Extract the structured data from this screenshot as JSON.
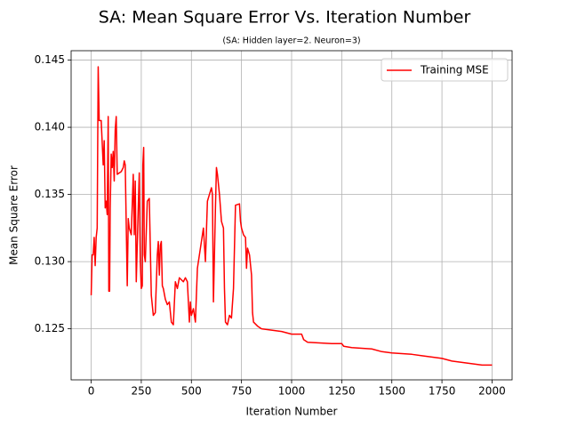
{
  "chart_data": {
    "type": "line",
    "title": "SA: Mean Square Error Vs. Iteration Number",
    "subtitle": "(SA: Hidden layer=2. Neuron=3)",
    "x_label": "Iteration Number",
    "y_label": "Mean Square Error",
    "xlim": [
      -100,
      2100
    ],
    "ylim": [
      0.1212,
      0.1457
    ],
    "xticks": [
      0,
      250,
      500,
      750,
      1000,
      1250,
      1500,
      1750,
      2000
    ],
    "yticks": [
      0.125,
      {
        "value": 0.13,
        "label": "0.130"
      },
      0.135,
      {
        "value": 0.14,
        "label": "0.140"
      },
      0.145
    ],
    "grid": true,
    "legend": "upper right",
    "x": [
      0,
      5,
      10,
      15,
      20,
      25,
      30,
      35,
      40,
      50,
      60,
      65,
      70,
      75,
      80,
      85,
      88,
      92,
      95,
      100,
      105,
      110,
      115,
      120,
      125,
      130,
      150,
      160,
      165,
      170,
      180,
      185,
      190,
      200,
      210,
      215,
      220,
      225,
      235,
      240,
      245,
      250,
      255,
      258,
      262,
      265,
      270,
      280,
      290,
      300,
      310,
      320,
      330,
      335,
      340,
      345,
      350,
      355,
      360,
      370,
      380,
      390,
      400,
      410,
      420,
      430,
      440,
      460,
      470,
      480,
      490,
      495,
      500,
      510,
      520,
      530,
      550,
      560,
      570,
      580,
      590,
      600,
      605,
      610,
      620,
      625,
      630,
      640,
      650,
      660,
      665,
      670,
      680,
      690,
      700,
      710,
      720,
      740,
      745,
      750,
      760,
      770,
      775,
      780,
      790,
      800,
      805,
      810,
      830,
      850,
      900,
      950,
      1000,
      1050,
      1060,
      1080,
      1200,
      1250,
      1260,
      1300,
      1400,
      1450,
      1500,
      1600,
      1650,
      1700,
      1750,
      1800,
      1850,
      1900,
      1950,
      2000
    ],
    "series": [
      {
        "name": "Training MSE",
        "color": "#ff0000",
        "values": [
          0.1275,
          0.1305,
          0.1305,
          0.1318,
          0.1297,
          0.1318,
          0.1325,
          0.1445,
          0.1405,
          0.1405,
          0.1372,
          0.139,
          0.134,
          0.1345,
          0.1335,
          0.1408,
          0.1278,
          0.1278,
          0.134,
          0.138,
          0.137,
          0.1382,
          0.136,
          0.1398,
          0.1408,
          0.1365,
          0.1367,
          0.137,
          0.1375,
          0.1372,
          0.1282,
          0.1332,
          0.1325,
          0.132,
          0.1365,
          0.132,
          0.136,
          0.1285,
          0.134,
          0.1366,
          0.13,
          0.128,
          0.1282,
          0.1372,
          0.1385,
          0.1305,
          0.13,
          0.1345,
          0.1347,
          0.1275,
          0.126,
          0.1262,
          0.1305,
          0.1315,
          0.129,
          0.1312,
          0.1315,
          0.1282,
          0.128,
          0.1272,
          0.1268,
          0.127,
          0.1255,
          0.1253,
          0.1285,
          0.128,
          0.1288,
          0.1285,
          0.1288,
          0.1285,
          0.1255,
          0.127,
          0.126,
          0.1265,
          0.1255,
          0.1295,
          0.1315,
          0.1325,
          0.13,
          0.1345,
          0.135,
          0.1355,
          0.135,
          0.127,
          0.134,
          0.137,
          0.1365,
          0.135,
          0.133,
          0.1325,
          0.128,
          0.1255,
          0.1253,
          0.126,
          0.1258,
          0.128,
          0.1342,
          0.1343,
          0.133,
          0.1325,
          0.132,
          0.1318,
          0.1295,
          0.131,
          0.1305,
          0.129,
          0.1262,
          0.1255,
          0.1252,
          0.125,
          0.1249,
          0.1248,
          0.1246,
          0.1246,
          0.1242,
          0.124,
          0.1239,
          0.1239,
          0.1237,
          0.1236,
          0.1235,
          0.1233,
          0.1232,
          0.1231,
          0.123,
          0.1229,
          0.1228,
          0.1226,
          0.1225,
          0.1224,
          0.1223,
          0.1223
        ]
      }
    ]
  }
}
